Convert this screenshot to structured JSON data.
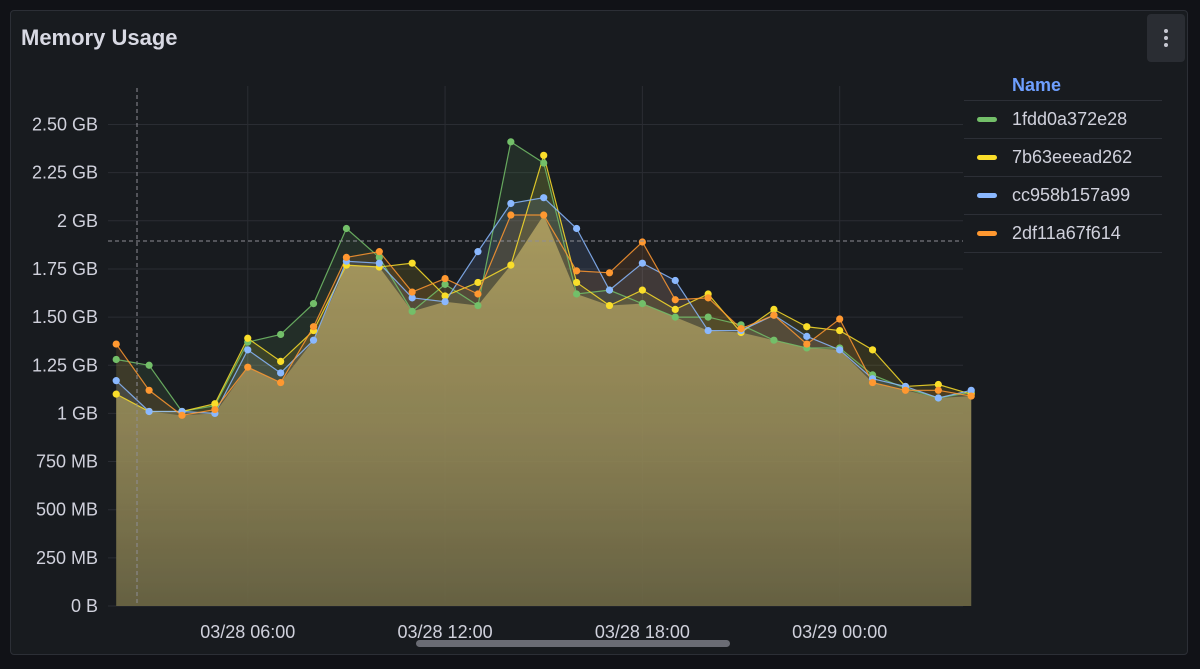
{
  "panel": {
    "title": "Memory Usage",
    "menu_icon": "kebab-menu-icon"
  },
  "legend": {
    "header": "Name"
  },
  "chart_data": {
    "type": "area",
    "title": "Memory Usage",
    "xlabel": "",
    "ylabel": "",
    "x_tick_labels": [
      "03/28 06:00",
      "03/28 12:00",
      "03/28 18:00",
      "03/29 00:00"
    ],
    "x_ticks_hours": [
      6,
      12,
      18,
      24
    ],
    "x_range_hours": [
      1.75,
      27.75
    ],
    "y_tick_labels": [
      "0 B",
      "250 MB",
      "500 MB",
      "750 MB",
      "1 GB",
      "1.25 GB",
      "1.50 GB",
      "1.75 GB",
      "2 GB",
      "2.25 GB",
      "2.50 GB"
    ],
    "ylim": [
      0,
      2.5
    ],
    "y_unit": "GB",
    "grid": true,
    "legend_position": "right",
    "x_hours": [
      2,
      3,
      4,
      5,
      6,
      7,
      8,
      9,
      10,
      11,
      12,
      13,
      14,
      15,
      16,
      17,
      18,
      19,
      20,
      21,
      22,
      23,
      24,
      25,
      26,
      27,
      28
    ],
    "series": [
      {
        "name": "1fdd0a372e28",
        "color": "#73bf69",
        "values": [
          1.28,
          1.25,
          1.01,
          1.04,
          1.37,
          1.41,
          1.57,
          1.96,
          1.81,
          1.53,
          1.67,
          1.56,
          2.41,
          2.3,
          1.62,
          1.64,
          1.57,
          1.5,
          1.5,
          1.46,
          1.38,
          1.34,
          1.34,
          1.2,
          1.13,
          1.08,
          1.11
        ]
      },
      {
        "name": "7b63eeead262",
        "color": "#fade2a",
        "values": [
          1.1,
          1.01,
          1.01,
          1.05,
          1.39,
          1.27,
          1.43,
          1.77,
          1.76,
          1.78,
          1.61,
          1.68,
          1.77,
          2.34,
          1.68,
          1.56,
          1.64,
          1.54,
          1.62,
          1.42,
          1.54,
          1.45,
          1.43,
          1.33,
          1.14,
          1.15,
          1.1
        ]
      },
      {
        "name": "cc958b157a99",
        "color": "#8ab8ff",
        "values": [
          1.17,
          1.01,
          1.01,
          1.0,
          1.33,
          1.21,
          1.38,
          1.79,
          1.78,
          1.6,
          1.58,
          1.84,
          2.09,
          2.12,
          1.96,
          1.64,
          1.78,
          1.69,
          1.43,
          1.43,
          1.51,
          1.4,
          1.33,
          1.18,
          1.14,
          1.08,
          1.12
        ]
      },
      {
        "name": "2df11a67f614",
        "color": "#ff9830",
        "values": [
          1.36,
          1.12,
          0.99,
          1.02,
          1.24,
          1.16,
          1.45,
          1.81,
          1.84,
          1.63,
          1.7,
          1.62,
          2.03,
          2.03,
          1.74,
          1.73,
          1.89,
          1.59,
          1.6,
          1.44,
          1.51,
          1.36,
          1.49,
          1.16,
          1.12,
          1.12,
          1.09
        ]
      }
    ]
  }
}
